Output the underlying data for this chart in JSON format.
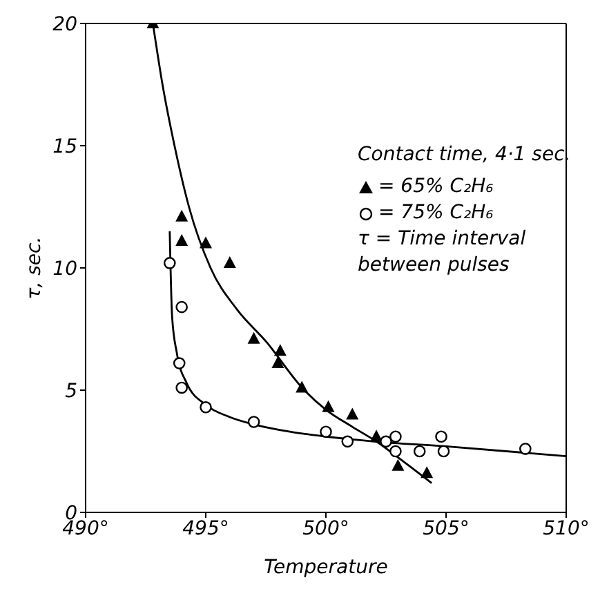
{
  "chart_data": {
    "type": "scatter",
    "xlabel": "Temperature",
    "ylabel": "τ, sec.",
    "legend_title": "Contact time, 4·1 sec.",
    "legend": "top right",
    "xlim": [
      490,
      510
    ],
    "xticks": [
      {
        "value": 490,
        "label": "490°"
      },
      {
        "value": 495,
        "label": "495°"
      },
      {
        "value": 500,
        "label": "500°"
      },
      {
        "value": 505,
        "label": "505°"
      },
      {
        "value": 510,
        "label": "510°"
      }
    ],
    "ylim": [
      0,
      20
    ],
    "yticks": [
      0,
      5,
      10,
      15,
      20
    ],
    "annotations": [
      "τ = Time interval between pulses"
    ],
    "series": [
      {
        "name": "= 65% C₂H₆",
        "type": "scatter",
        "marker": "triangle",
        "color": "#000000",
        "x": [
          492.8,
          494.0,
          494.0,
          495.0,
          496.0,
          497.0,
          498.1,
          498.0,
          499.0,
          500.1,
          501.1,
          502.1,
          503.0,
          504.2
        ],
        "values": [
          20,
          12.1,
          11.1,
          11.0,
          10.2,
          7.1,
          6.6,
          6.1,
          5.1,
          4.3,
          4.0,
          3.1,
          1.9,
          1.6
        ]
      },
      {
        "name": "= 75% C₂H₆",
        "type": "scatter",
        "marker": "circle",
        "color": "#000000",
        "x": [
          493.5,
          494.0,
          493.9,
          494.0,
          495.0,
          497.0,
          500.0,
          500.9,
          502.5,
          502.9,
          502.9,
          503.9,
          504.8,
          504.9,
          508.3
        ],
        "values": [
          10.2,
          8.4,
          6.1,
          5.1,
          4.3,
          3.7,
          3.3,
          2.9,
          2.9,
          3.1,
          2.5,
          2.5,
          3.1,
          2.5,
          2.6
        ]
      },
      {
        "type": "line",
        "marker": "none",
        "line_style": "solid",
        "color": "#000000",
        "x": [
          492.8,
          493.2,
          493.7,
          494.3,
          495.2,
          496.3,
          497.5,
          499.1,
          500.0,
          501.1,
          502.1,
          503.2,
          504.4
        ],
        "values": [
          20,
          17.5,
          15,
          12.5,
          10,
          8.3,
          7,
          5,
          4.2,
          3.5,
          2.9,
          2.1,
          1.2
        ]
      },
      {
        "type": "line",
        "marker": "none",
        "line_style": "solid",
        "color": "#000000",
        "x": [
          493.5,
          493.6,
          493.8,
          494.2,
          495.0,
          496.0,
          497.0,
          498.5,
          500.0,
          502.0,
          505.0,
          510.0
        ],
        "values": [
          11.5,
          8,
          6.5,
          5.3,
          4.4,
          3.9,
          3.6,
          3.3,
          3.1,
          2.9,
          2.7,
          2.3
        ]
      }
    ]
  }
}
